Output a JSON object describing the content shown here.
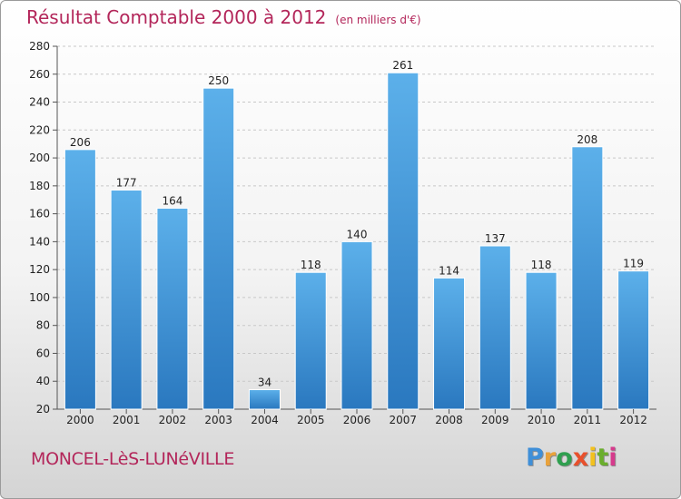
{
  "header": {
    "title": "Résultat Comptable 2000 à 2012",
    "subtitle": "(en milliers d'€)"
  },
  "footer": {
    "location": "MONCEL-LèS-LUNéVILLE",
    "logo_letters": [
      "P",
      "r",
      "o",
      "x",
      "i",
      "t",
      "i"
    ],
    "logo_colors": [
      "#3f8fd8",
      "#e9a23b",
      "#2f9f4f",
      "#e8502c",
      "#f2c11e",
      "#6aae2c",
      "#d63a8c"
    ]
  },
  "colors": {
    "bar_top": "#5cb0ea",
    "bar_bottom": "#2a78bf",
    "grid": "#c8c8c8",
    "axis": "#555555"
  },
  "chart_data": {
    "type": "bar",
    "title": "Résultat Comptable 2000 à 2012",
    "subtitle": "(en milliers d'€)",
    "categories": [
      "2000",
      "2001",
      "2002",
      "2003",
      "2004",
      "2005",
      "2006",
      "2007",
      "2008",
      "2009",
      "2010",
      "2011",
      "2012"
    ],
    "values": [
      206,
      177,
      164,
      250,
      34,
      118,
      140,
      261,
      114,
      137,
      118,
      208,
      119
    ],
    "xlabel": "",
    "ylabel": "",
    "ylim": [
      20,
      280
    ],
    "yticks": [
      20,
      40,
      60,
      80,
      100,
      120,
      140,
      160,
      180,
      200,
      220,
      240,
      260,
      280
    ],
    "grid": true,
    "legend": "none"
  }
}
